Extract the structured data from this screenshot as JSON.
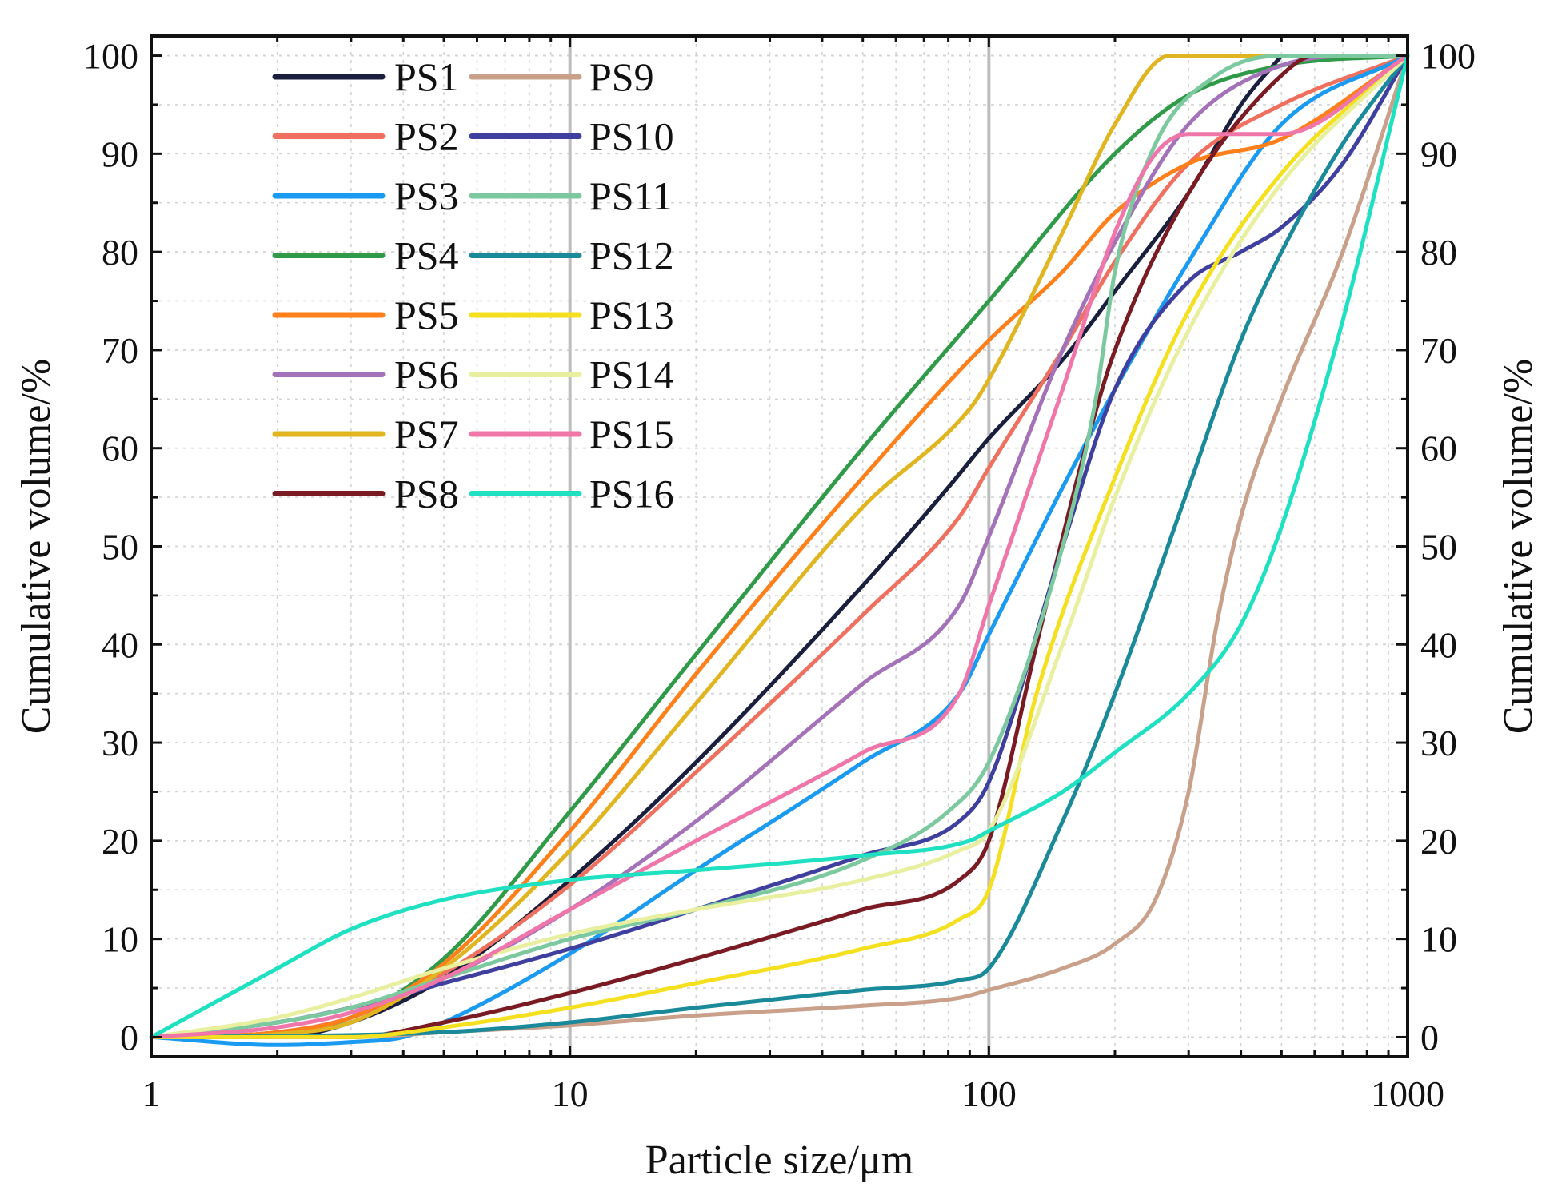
{
  "chart_data": {
    "type": "line",
    "xscale": "log",
    "xlabel": "Particle size/μm",
    "ylabel": "Cumulative volume/%",
    "ylabel_right": "Cumulative volume/%",
    "xlim": [
      1,
      1000
    ],
    "ylim": [
      -2,
      102
    ],
    "x_ticks": [
      1,
      10,
      100,
      1000
    ],
    "x_tick_labels": [
      "1",
      "10",
      "100",
      "1000"
    ],
    "y_ticks": [
      0,
      10,
      20,
      30,
      40,
      50,
      60,
      70,
      80,
      90,
      100
    ],
    "y_tick_labels": [
      "0",
      "10",
      "20",
      "30",
      "40",
      "50",
      "60",
      "70",
      "80",
      "90",
      "100"
    ],
    "reference_lines_x": [
      10,
      100
    ],
    "grid": true,
    "legend_position": "top-left",
    "series": [
      {
        "name": "PS1",
        "color": "#1a1f3d",
        "points": [
          [
            1,
            0
          ],
          [
            2,
            0
          ],
          [
            3,
            1.5
          ],
          [
            5,
            6
          ],
          [
            10,
            16
          ],
          [
            20,
            28
          ],
          [
            50,
            46
          ],
          [
            80,
            56
          ],
          [
            100,
            61
          ],
          [
            150,
            69
          ],
          [
            200,
            76
          ],
          [
            300,
            86
          ],
          [
            400,
            95
          ],
          [
            500,
            100
          ]
        ]
      },
      {
        "name": "PS2",
        "color": "#f07060",
        "points": [
          [
            1,
            0
          ],
          [
            2,
            0.5
          ],
          [
            3,
            2
          ],
          [
            5,
            6.5
          ],
          [
            10,
            15.5
          ],
          [
            20,
            27
          ],
          [
            50,
            43
          ],
          [
            85,
            53
          ],
          [
            100,
            58
          ],
          [
            150,
            70
          ],
          [
            200,
            79
          ],
          [
            300,
            89
          ],
          [
            500,
            95
          ],
          [
            1000,
            100
          ]
        ]
      },
      {
        "name": "PS3",
        "color": "#1a9af0",
        "points": [
          [
            1,
            0
          ],
          [
            2,
            -0.8
          ],
          [
            3,
            -0.5
          ],
          [
            4,
            0
          ],
          [
            5,
            1.5
          ],
          [
            10,
            8.5
          ],
          [
            20,
            17
          ],
          [
            50,
            28
          ],
          [
            85,
            35
          ],
          [
            100,
            41
          ],
          [
            150,
            56
          ],
          [
            200,
            66
          ],
          [
            300,
            79
          ],
          [
            500,
            93
          ],
          [
            1000,
            100
          ]
        ]
      },
      {
        "name": "PS4",
        "color": "#2f9a48",
        "points": [
          [
            1,
            0
          ],
          [
            2,
            0.5
          ],
          [
            3,
            2
          ],
          [
            5,
            8
          ],
          [
            10,
            23
          ],
          [
            20,
            39
          ],
          [
            50,
            60
          ],
          [
            100,
            75
          ],
          [
            200,
            90
          ],
          [
            300,
            96
          ],
          [
            500,
            99
          ],
          [
            1000,
            100
          ]
        ]
      },
      {
        "name": "PS5",
        "color": "#ff7f1a",
        "points": [
          [
            1,
            0
          ],
          [
            2,
            0.5
          ],
          [
            3,
            2
          ],
          [
            5,
            7.5
          ],
          [
            10,
            21
          ],
          [
            20,
            37
          ],
          [
            50,
            57
          ],
          [
            100,
            71
          ],
          [
            150,
            78
          ],
          [
            200,
            84
          ],
          [
            300,
            89
          ],
          [
            500,
            91.5
          ],
          [
            1000,
            100
          ]
        ]
      },
      {
        "name": "PS6",
        "color": "#a472b8",
        "points": [
          [
            1,
            0
          ],
          [
            2,
            1.5
          ],
          [
            3,
            3
          ],
          [
            5,
            6
          ],
          [
            10,
            13
          ],
          [
            20,
            22
          ],
          [
            50,
            36
          ],
          [
            85,
            44
          ],
          [
            100,
            51
          ],
          [
            150,
            70
          ],
          [
            200,
            81
          ],
          [
            300,
            93
          ],
          [
            500,
            99
          ],
          [
            1000,
            100
          ]
        ]
      },
      {
        "name": "PS7",
        "color": "#e0b520",
        "points": [
          [
            1,
            0
          ],
          [
            2,
            0.3
          ],
          [
            3,
            1.5
          ],
          [
            5,
            7
          ],
          [
            10,
            19
          ],
          [
            20,
            34
          ],
          [
            50,
            54
          ],
          [
            90,
            64
          ],
          [
            100,
            67
          ],
          [
            150,
            82
          ],
          [
            200,
            93
          ],
          [
            270,
            100
          ],
          [
            1000,
            100
          ]
        ]
      },
      {
        "name": "PS8",
        "color": "#7a1a22",
        "points": [
          [
            1,
            0
          ],
          [
            3,
            0
          ],
          [
            5,
            1.5
          ],
          [
            10,
            4.5
          ],
          [
            20,
            8
          ],
          [
            50,
            13
          ],
          [
            85,
            16
          ],
          [
            100,
            20
          ],
          [
            130,
            40
          ],
          [
            170,
            60
          ],
          [
            200,
            70
          ],
          [
            300,
            86
          ],
          [
            500,
            98
          ],
          [
            600,
            100
          ],
          [
            1000,
            100
          ]
        ]
      },
      {
        "name": "PS9",
        "color": "#c9a08a",
        "points": [
          [
            1,
            0
          ],
          [
            3,
            0
          ],
          [
            5,
            0.5
          ],
          [
            10,
            1.2
          ],
          [
            20,
            2.2
          ],
          [
            50,
            3.2
          ],
          [
            85,
            4
          ],
          [
            100,
            4.8
          ],
          [
            150,
            7
          ],
          [
            200,
            9.5
          ],
          [
            250,
            14
          ],
          [
            300,
            25
          ],
          [
            350,
            42
          ],
          [
            400,
            53
          ],
          [
            500,
            65
          ],
          [
            700,
            80
          ],
          [
            1000,
            100
          ]
        ]
      },
      {
        "name": "PS10",
        "color": "#3f3f9f",
        "points": [
          [
            1,
            0
          ],
          [
            2,
            1.5
          ],
          [
            3,
            3
          ],
          [
            5,
            5.5
          ],
          [
            10,
            9
          ],
          [
            20,
            13
          ],
          [
            50,
            18.5
          ],
          [
            85,
            22
          ],
          [
            100,
            26
          ],
          [
            150,
            50
          ],
          [
            200,
            66
          ],
          [
            300,
            77
          ],
          [
            400,
            80
          ],
          [
            500,
            82.5
          ],
          [
            700,
            89
          ],
          [
            1000,
            100
          ]
        ]
      },
      {
        "name": "PS11",
        "color": "#7cc9a0",
        "points": [
          [
            1,
            0
          ],
          [
            2,
            1.5
          ],
          [
            3,
            3
          ],
          [
            5,
            6
          ],
          [
            10,
            10
          ],
          [
            20,
            13
          ],
          [
            50,
            18
          ],
          [
            80,
            23
          ],
          [
            100,
            28
          ],
          [
            150,
            50
          ],
          [
            180,
            65
          ],
          [
            200,
            78
          ],
          [
            250,
            91
          ],
          [
            350,
            98
          ],
          [
            500,
            100
          ],
          [
            1000,
            100
          ]
        ]
      },
      {
        "name": "PS12",
        "color": "#1a8a9a",
        "points": [
          [
            1,
            0
          ],
          [
            5,
            0.5
          ],
          [
            10,
            1.5
          ],
          [
            20,
            3
          ],
          [
            50,
            4.8
          ],
          [
            85,
            5.8
          ],
          [
            100,
            7
          ],
          [
            150,
            22
          ],
          [
            200,
            35
          ],
          [
            300,
            56
          ],
          [
            400,
            71
          ],
          [
            500,
            80
          ],
          [
            700,
            91
          ],
          [
            1000,
            100
          ]
        ]
      },
      {
        "name": "PS13",
        "color": "#f5e020",
        "points": [
          [
            1,
            0
          ],
          [
            3,
            0
          ],
          [
            5,
            1
          ],
          [
            10,
            3
          ],
          [
            20,
            5.5
          ],
          [
            50,
            9
          ],
          [
            85,
            12
          ],
          [
            100,
            15
          ],
          [
            130,
            35
          ],
          [
            200,
            57
          ],
          [
            300,
            74
          ],
          [
            500,
            88
          ],
          [
            1000,
            100
          ]
        ]
      },
      {
        "name": "PS14",
        "color": "#e8f0a0",
        "points": [
          [
            1,
            0
          ],
          [
            2,
            2
          ],
          [
            3,
            4
          ],
          [
            5,
            7
          ],
          [
            10,
            10.5
          ],
          [
            20,
            13
          ],
          [
            50,
            16
          ],
          [
            85,
            19
          ],
          [
            100,
            21
          ],
          [
            150,
            40
          ],
          [
            200,
            55
          ],
          [
            300,
            72
          ],
          [
            500,
            87
          ],
          [
            1000,
            100
          ]
        ]
      },
      {
        "name": "PS15",
        "color": "#f075a8",
        "points": [
          [
            1,
            0
          ],
          [
            2,
            1
          ],
          [
            3,
            2.5
          ],
          [
            5,
            6
          ],
          [
            10,
            13
          ],
          [
            20,
            20
          ],
          [
            50,
            29
          ],
          [
            85,
            35
          ],
          [
            100,
            44
          ],
          [
            150,
            66
          ],
          [
            200,
            82
          ],
          [
            250,
            90
          ],
          [
            300,
            92
          ],
          [
            500,
            92
          ],
          [
            1000,
            100
          ]
        ]
      },
      {
        "name": "PS16",
        "color": "#1fe0c0",
        "points": [
          [
            1,
            0
          ],
          [
            2,
            7
          ],
          [
            3,
            11
          ],
          [
            5,
            14
          ],
          [
            10,
            16
          ],
          [
            20,
            17
          ],
          [
            50,
            18.5
          ],
          [
            90,
            20
          ],
          [
            100,
            21
          ],
          [
            150,
            25
          ],
          [
            200,
            29
          ],
          [
            300,
            35
          ],
          [
            400,
            42
          ],
          [
            500,
            52
          ],
          [
            700,
            73
          ],
          [
            1000,
            100
          ]
        ]
      }
    ]
  }
}
